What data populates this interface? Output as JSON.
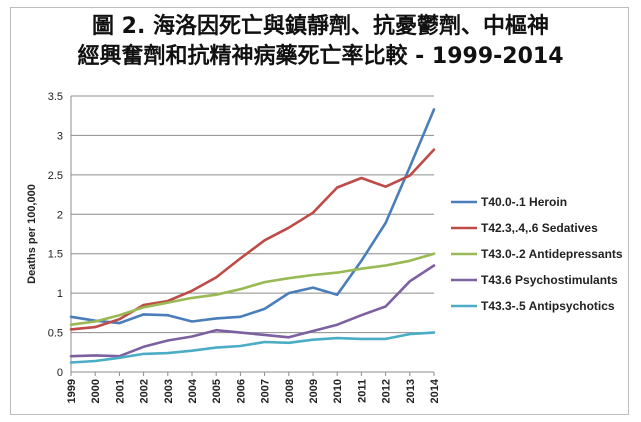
{
  "chart_data": {
    "type": "line",
    "title_line1": "圖 2. 海洛因死亡與鎮靜劑、抗憂鬱劑、中樞神",
    "title_line2": "經興奮劑和抗精神病藥死亡率比較 - 1999-2014",
    "xlabel": "",
    "ylabel": "Deaths per 100,000",
    "ylim": [
      0,
      3.5
    ],
    "yticks": [
      "0",
      "0.5",
      "1",
      "1.5",
      "2",
      "2.5",
      "3",
      "3.5"
    ],
    "ytick_values": [
      0,
      0.5,
      1,
      1.5,
      2,
      2.5,
      3,
      3.5
    ],
    "x": [
      "1999",
      "2000",
      "2001",
      "2002",
      "2003",
      "2004",
      "2005",
      "2006",
      "2007",
      "2008",
      "2009",
      "2010",
      "2011",
      "2012",
      "2013",
      "2014"
    ],
    "grid": "horizontal",
    "legend_position": "right",
    "series": [
      {
        "name": "T40.0-.1 Heroin",
        "color": "#4a7ebb",
        "values": [
          0.7,
          0.65,
          0.62,
          0.73,
          0.72,
          0.64,
          0.68,
          0.7,
          0.8,
          1.0,
          1.07,
          0.98,
          1.41,
          1.89,
          2.6,
          3.33
        ]
      },
      {
        "name": "T42.3,.4,.6 Sedatives",
        "color": "#be4b48",
        "values": [
          0.54,
          0.57,
          0.67,
          0.85,
          0.9,
          1.03,
          1.2,
          1.44,
          1.67,
          1.83,
          2.02,
          2.34,
          2.46,
          2.35,
          2.49,
          2.82
        ]
      },
      {
        "name": "T43.0-.2 Antidepressants",
        "color": "#98b954",
        "values": [
          0.6,
          0.64,
          0.72,
          0.82,
          0.88,
          0.94,
          0.98,
          1.05,
          1.14,
          1.19,
          1.23,
          1.26,
          1.31,
          1.35,
          1.41,
          1.5
        ]
      },
      {
        "name": "T43.6 Psychostimulants",
        "color": "#7d60a0",
        "values": [
          0.2,
          0.21,
          0.2,
          0.32,
          0.4,
          0.45,
          0.53,
          0.5,
          0.47,
          0.44,
          0.52,
          0.6,
          0.72,
          0.83,
          1.15,
          1.35
        ]
      },
      {
        "name": "T43.3-.5 Antipsychotics",
        "color": "#4bacc6",
        "values": [
          0.12,
          0.14,
          0.18,
          0.23,
          0.24,
          0.27,
          0.31,
          0.33,
          0.38,
          0.37,
          0.41,
          0.43,
          0.42,
          0.42,
          0.48,
          0.5
        ]
      }
    ]
  }
}
